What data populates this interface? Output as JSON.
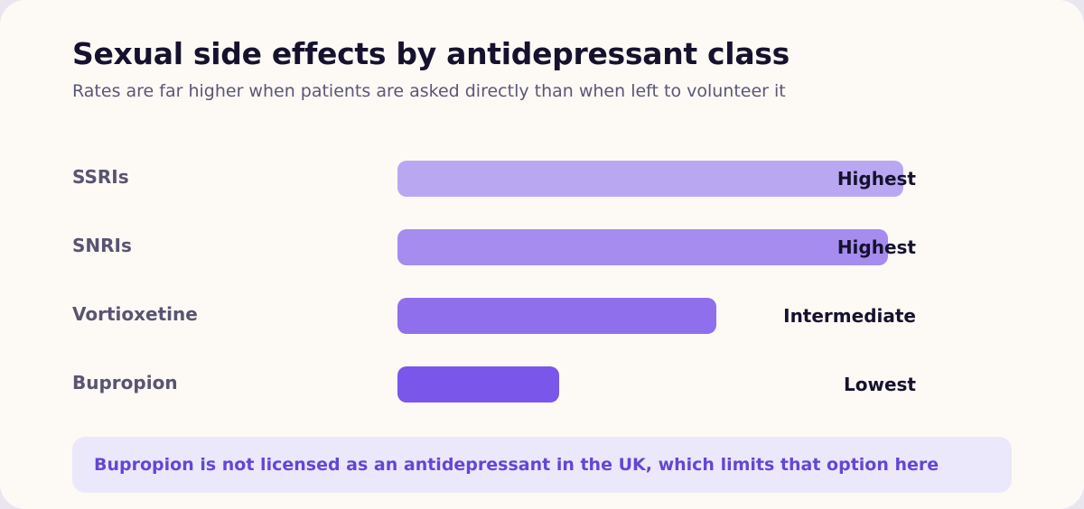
{
  "chart_data": {
    "type": "bar",
    "orientation": "horizontal",
    "title": "Sexual side effects by antidepressant class",
    "subtitle": "Rates are far higher when patients are asked directly than when left to volunteer it",
    "categories": [
      "SSRIs",
      "SNRIs",
      "Vortioxetine",
      "Bupropion"
    ],
    "values": [
      1.0,
      0.97,
      0.63,
      0.32
    ],
    "value_labels": [
      "Highest",
      "Highest",
      "Intermediate",
      "Lowest"
    ],
    "value_scale": "relative (0–1, no numeric axis shown)",
    "bar_colors": [
      "#b9a8f1",
      "#a68cee",
      "#8f6fec",
      "#7a56ea"
    ],
    "grid": false,
    "legend": "none"
  },
  "note": {
    "text": "Bupropion is not licensed as an antidepressant in the UK, which limits that option here"
  },
  "colors": {
    "background": "#fdfaf6",
    "title": "#16122e",
    "label": "#595470",
    "note_bg": "#ece8fb",
    "note_text": "#6346d6"
  }
}
